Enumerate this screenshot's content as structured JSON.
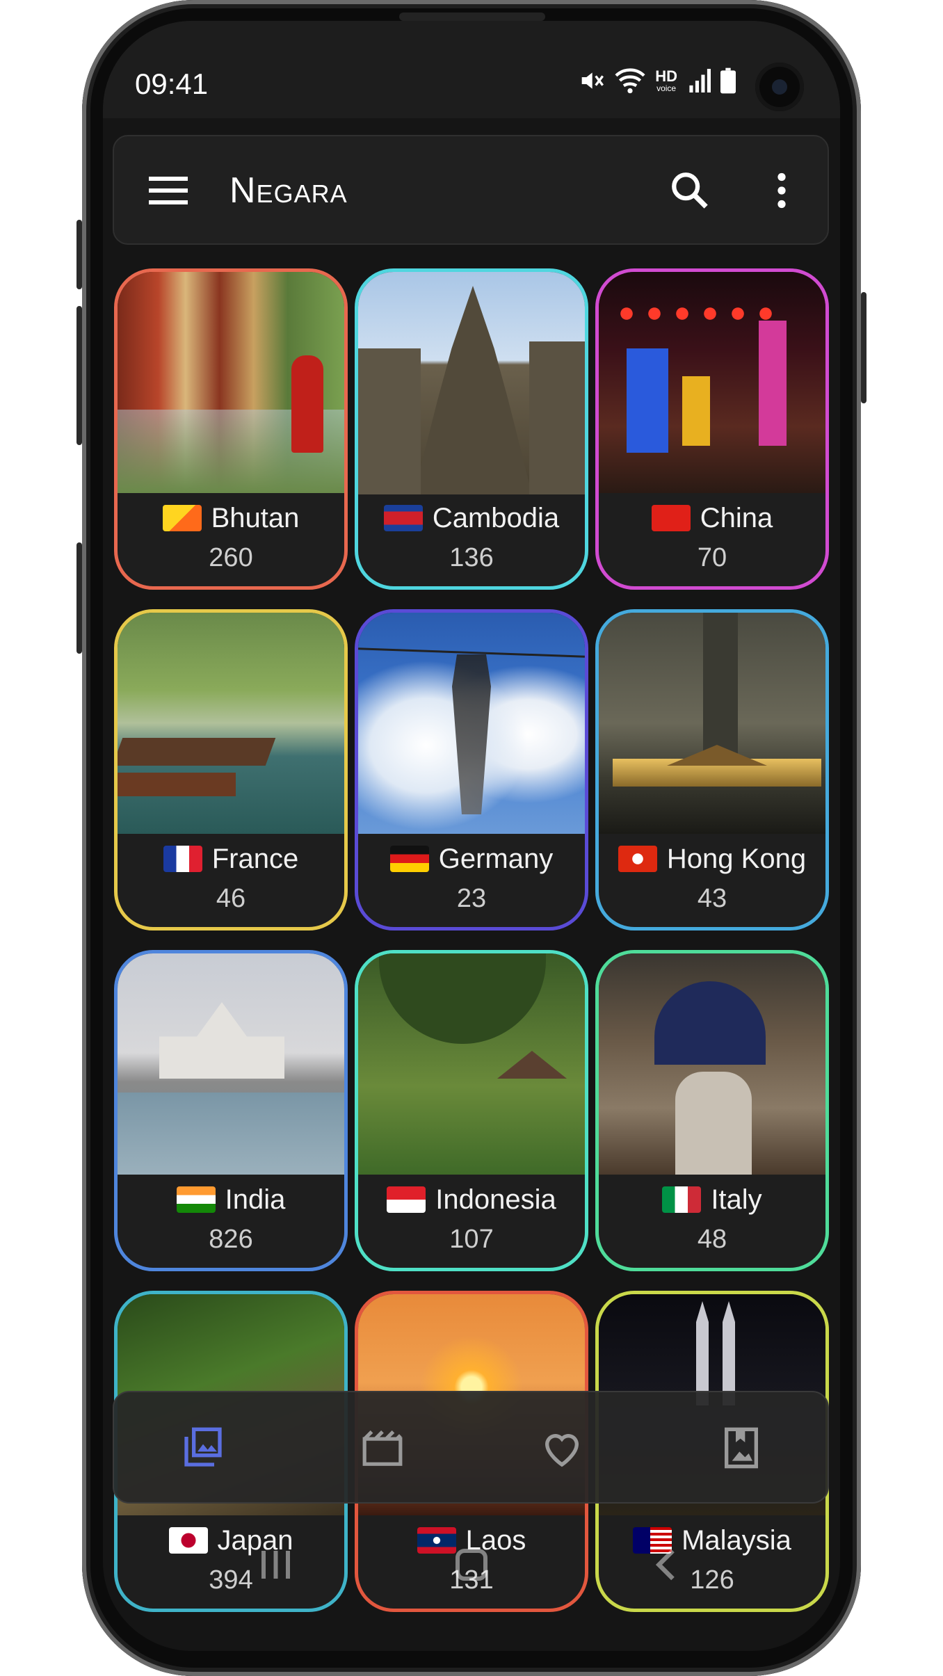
{
  "status_bar": {
    "time": "09:41",
    "hd_label": "HD",
    "voice_label": "voice"
  },
  "app_bar": {
    "title": "Negara"
  },
  "accent": "#5a6ee0",
  "countries": [
    {
      "name": "Bhutan",
      "count": "260",
      "border": "#e8684f",
      "flag": "bhutan-flag"
    },
    {
      "name": "Cambodia",
      "count": "136",
      "border": "#4fd6df",
      "flag": "cambodia-flag"
    },
    {
      "name": "China",
      "count": "70",
      "border": "#d14bd1",
      "flag": "china-flag"
    },
    {
      "name": "France",
      "count": "46",
      "border": "#e6c94a",
      "flag": "france-flag"
    },
    {
      "name": "Germany",
      "count": "23",
      "border": "#5a4bd6",
      "flag": "germany-flag"
    },
    {
      "name": "Hong Kong",
      "count": "43",
      "border": "#45aadd",
      "flag": "hong-kong-flag"
    },
    {
      "name": "India",
      "count": "826",
      "border": "#4f86dd",
      "flag": "india-flag"
    },
    {
      "name": "Indonesia",
      "count": "107",
      "border": "#4fe0c6",
      "flag": "indonesia-flag"
    },
    {
      "name": "Italy",
      "count": "48",
      "border": "#4fdc9a",
      "flag": "italy-flag"
    },
    {
      "name": "Japan",
      "count": "394",
      "border": "#3fb3c8",
      "flag": "japan-flag"
    },
    {
      "name": "Laos",
      "count": "131",
      "border": "#e2573e",
      "flag": "laos-flag"
    },
    {
      "name": "Malaysia",
      "count": "126",
      "border": "#c9d84a",
      "flag": "malaysia-flag"
    }
  ],
  "bottom_nav": [
    {
      "icon": "photo-library-icon",
      "active": true
    },
    {
      "icon": "movie-icon",
      "active": false
    },
    {
      "icon": "heart-icon",
      "active": false
    },
    {
      "icon": "bookmark-image-icon",
      "active": false
    }
  ],
  "system_nav": [
    "recent-apps-icon",
    "home-icon",
    "back-icon"
  ]
}
